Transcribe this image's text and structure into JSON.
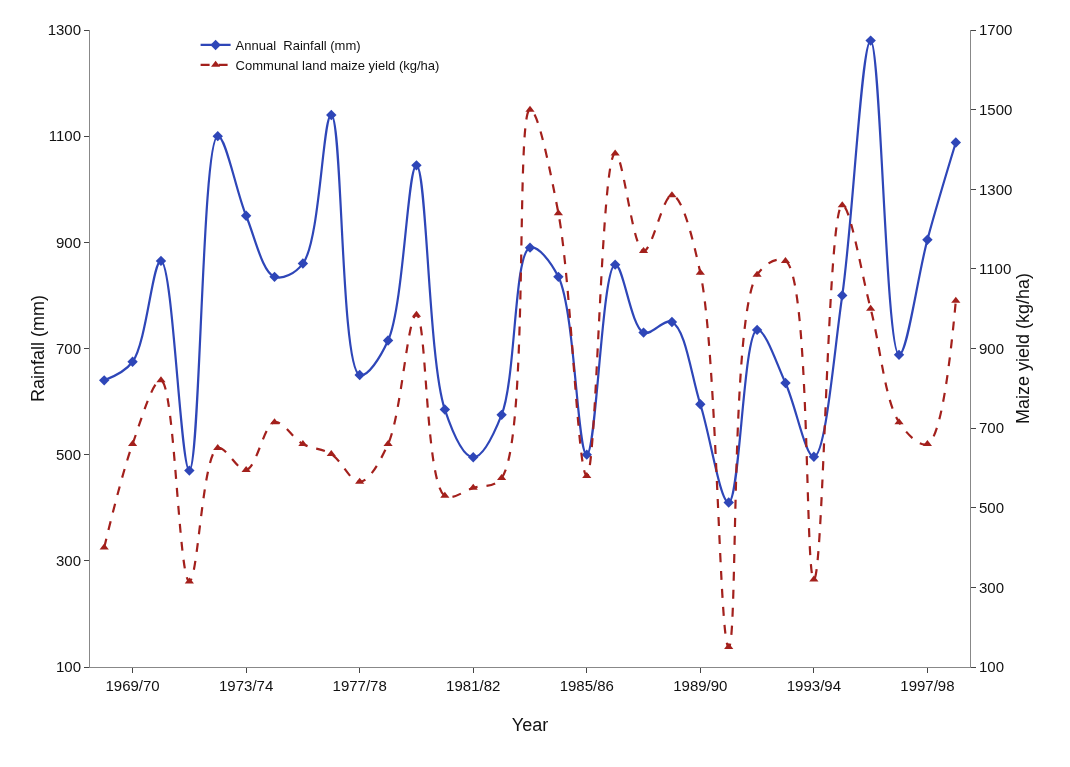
{
  "chart_data": {
    "type": "line",
    "xlabel": "Year",
    "ylabel": "Rainfall (mm)",
    "y2label": "Maize yield (kg/ha)",
    "categories": [
      null,
      "1969/70",
      null,
      null,
      null,
      "1973/74",
      null,
      null,
      null,
      "1977/78",
      null,
      null,
      null,
      "1981/82",
      null,
      null,
      null,
      "1985/86",
      null,
      null,
      null,
      "1989/90",
      null,
      null,
      null,
      "1993/94",
      null,
      null,
      null,
      "1997/98",
      null
    ],
    "series": [
      {
        "name": "Annual  Rainfall (mm)",
        "color": "#2e46b8",
        "marker": "diamond",
        "line_style": "solid",
        "values": [
          640,
          675,
          865,
          470,
          1100,
          950,
          835,
          860,
          1140,
          650,
          715,
          1045,
          585,
          495,
          575,
          890,
          835,
          500,
          858,
          730,
          750,
          595,
          410,
          735,
          635,
          496,
          800,
          1280,
          688,
          905,
          1088
        ]
      },
      {
        "name": "Communal land maize yield (kg/ha)",
        "color": "#a3201c",
        "marker": "triangle",
        "line_style": "dashed",
        "axis": "y2",
        "values": [
          400,
          660,
          820,
          315,
          650,
          595,
          715,
          660,
          635,
          565,
          660,
          985,
          530,
          550,
          575,
          1500,
          1240,
          580,
          1390,
          1145,
          1285,
          1090,
          150,
          1085,
          1120,
          320,
          1260,
          1000,
          715,
          660,
          1020
        ]
      }
    ],
    "ylim": [
      100,
      1300
    ],
    "yticks": [
      100,
      300,
      500,
      700,
      900,
      1100,
      1300
    ],
    "y2lim": [
      100,
      1700
    ],
    "y2ticks": [
      100,
      300,
      500,
      700,
      900,
      1100,
      1300,
      1500,
      1700
    ],
    "grid": false,
    "legend": "top left"
  }
}
